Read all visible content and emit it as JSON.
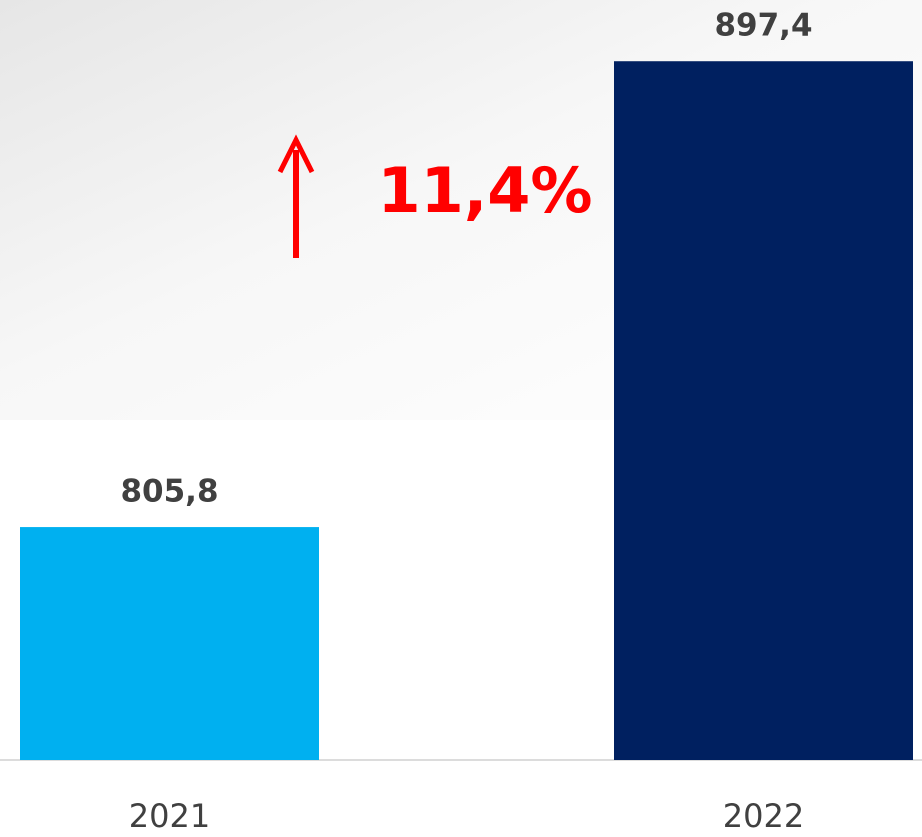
{
  "chart_data": {
    "type": "bar",
    "categories": [
      "2021",
      "2022"
    ],
    "series": [
      {
        "values": [
          805.8,
          897.4
        ],
        "value_labels": [
          "805,8",
          "897,4"
        ],
        "colors": [
          "#00b0f0",
          "#002060"
        ]
      }
    ],
    "ylim": [
      760,
      900
    ],
    "annotation": "11,4%"
  }
}
